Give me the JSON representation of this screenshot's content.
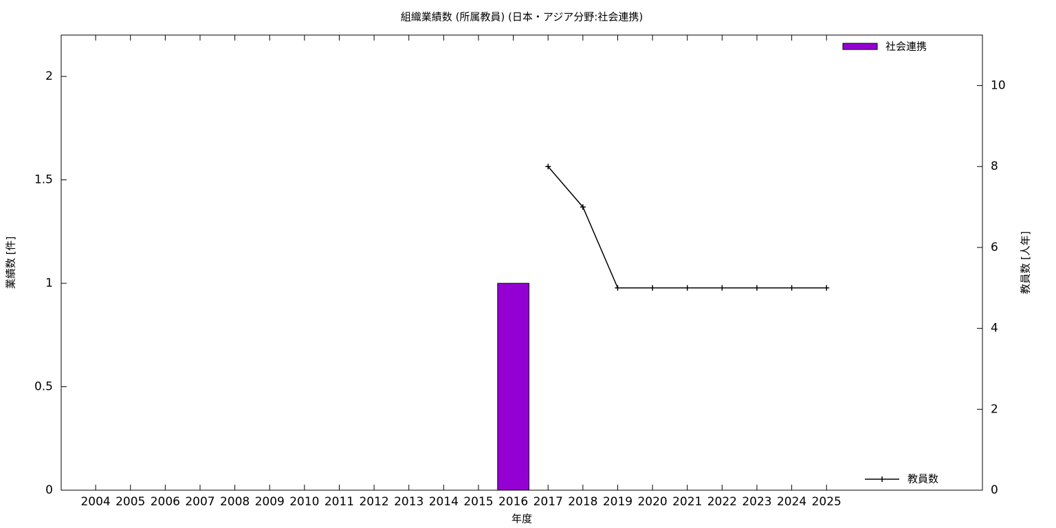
{
  "chart_data": {
    "type": "bar_line",
    "title": "組織業績数 (所属教員) (日本・アジア分野:社会連携)",
    "x_label": "年度",
    "y_label": "業績数 [件]",
    "y2_label": "教員数 [人年]",
    "x": [
      2004,
      2005,
      2006,
      2007,
      2008,
      2009,
      2010,
      2011,
      2012,
      2013,
      2014,
      2015,
      2016,
      2017,
      2018,
      2019,
      2020,
      2021,
      2022,
      2023,
      2024,
      2025
    ],
    "xlim": [
      2003.01,
      2029.48
    ],
    "xticks": [
      2004,
      2005,
      2006,
      2007,
      2008,
      2009,
      2010,
      2011,
      2012,
      2013,
      2014,
      2015,
      2016,
      2017,
      2018,
      2019,
      2020,
      2021,
      2022,
      2023,
      2024,
      2025
    ],
    "ylim": [
      0,
      2.2
    ],
    "yticks": [
      0,
      0.5,
      1,
      1.5,
      2
    ],
    "y2lim": [
      0,
      11.25
    ],
    "y2ticks": [
      0,
      2,
      4,
      6,
      8,
      10
    ],
    "series": [
      {
        "name": "社会連携",
        "type": "bar",
        "color": "#9400d3",
        "values": [
          0,
          0,
          0,
          0,
          0,
          0,
          0,
          0,
          0,
          0,
          0,
          0,
          1,
          0,
          0,
          0,
          0,
          0,
          0,
          0,
          0,
          0
        ]
      },
      {
        "name": "教員数",
        "type": "line",
        "axis": "y2",
        "color": "#000000",
        "values": [
          null,
          null,
          null,
          null,
          null,
          null,
          null,
          null,
          null,
          null,
          null,
          null,
          null,
          8,
          7,
          5,
          5,
          5,
          5,
          5,
          5,
          5
        ]
      }
    ]
  }
}
